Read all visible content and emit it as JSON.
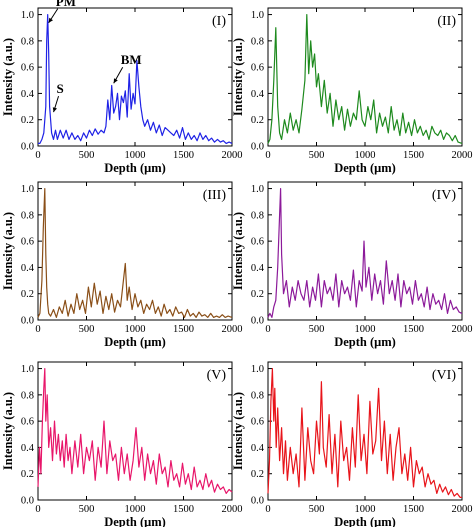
{
  "chart_data": [
    {
      "type": "line",
      "panel_label": "(I)",
      "color": "#1f22e6",
      "xlabel": "Depth (μm)",
      "ylabel": "Intensity (a.u.)",
      "xlim": [
        0,
        2000
      ],
      "ylim": [
        0,
        1.05
      ],
      "xticks": [
        "0",
        "500",
        "1000",
        "1500",
        "2000"
      ],
      "yticks": [
        "0.0",
        "0.2",
        "0.4",
        "0.6",
        "0.8",
        "1.0"
      ],
      "annotations": [
        {
          "text": "PM",
          "x": 100,
          "y": 0.93
        },
        {
          "text": "S",
          "x": 150,
          "y": 0.25
        },
        {
          "text": "BM",
          "x": 770,
          "y": 0.47
        }
      ],
      "x": [
        0,
        20,
        40,
        60,
        80,
        90,
        100,
        110,
        120,
        140,
        160,
        180,
        200,
        230,
        260,
        290,
        320,
        350,
        380,
        410,
        440,
        470,
        500,
        530,
        560,
        590,
        620,
        650,
        680,
        700,
        720,
        740,
        760,
        780,
        800,
        820,
        840,
        860,
        880,
        900,
        920,
        940,
        960,
        980,
        1000,
        1020,
        1040,
        1060,
        1080,
        1100,
        1130,
        1160,
        1190,
        1220,
        1250,
        1280,
        1310,
        1340,
        1370,
        1400,
        1430,
        1460,
        1490,
        1520,
        1550,
        1580,
        1610,
        1640,
        1670,
        1700,
        1730,
        1760,
        1790,
        1820,
        1850,
        1880,
        1910,
        1940,
        1970,
        2000
      ],
      "y": [
        0.02,
        0.02,
        0.05,
        0.1,
        0.3,
        0.8,
        1.0,
        0.7,
        0.3,
        0.1,
        0.05,
        0.12,
        0.05,
        0.12,
        0.06,
        0.12,
        0.05,
        0.1,
        0.05,
        0.08,
        0.04,
        0.1,
        0.06,
        0.12,
        0.08,
        0.13,
        0.09,
        0.12,
        0.1,
        0.15,
        0.35,
        0.2,
        0.46,
        0.25,
        0.3,
        0.4,
        0.2,
        0.38,
        0.33,
        0.42,
        0.22,
        0.55,
        0.28,
        0.4,
        0.32,
        0.65,
        0.45,
        0.3,
        0.2,
        0.15,
        0.2,
        0.12,
        0.18,
        0.1,
        0.16,
        0.08,
        0.14,
        0.12,
        0.1,
        0.08,
        0.12,
        0.06,
        0.14,
        0.05,
        0.1,
        0.05,
        0.08,
        0.04,
        0.1,
        0.05,
        0.08,
        0.04,
        0.06,
        0.03,
        0.05,
        0.03,
        0.04,
        0.02,
        0.03,
        0.02
      ]
    },
    {
      "type": "line",
      "panel_label": "(II)",
      "color": "#1e8a1e",
      "xlabel": "Depth (μm)",
      "ylabel": "Intensity (a.u.)",
      "xlim": [
        0,
        2000
      ],
      "ylim": [
        0,
        1.05
      ],
      "xticks": [
        "0",
        "500",
        "1000",
        "1500",
        "2000"
      ],
      "yticks": [
        "0.0",
        "0.2",
        "0.4",
        "0.6",
        "0.8",
        "1.0"
      ],
      "x": [
        0,
        20,
        40,
        60,
        80,
        100,
        120,
        140,
        170,
        200,
        230,
        260,
        290,
        320,
        350,
        380,
        400,
        420,
        440,
        460,
        480,
        500,
        520,
        550,
        580,
        610,
        640,
        670,
        700,
        730,
        760,
        790,
        820,
        850,
        880,
        910,
        940,
        970,
        1000,
        1030,
        1060,
        1090,
        1120,
        1150,
        1180,
        1210,
        1240,
        1270,
        1300,
        1330,
        1360,
        1390,
        1420,
        1450,
        1480,
        1510,
        1540,
        1570,
        1600,
        1630,
        1660,
        1690,
        1720,
        1750,
        1780,
        1810,
        1840,
        1870,
        1900,
        1930,
        1960,
        2000
      ],
      "y": [
        0.02,
        0.05,
        0.2,
        0.5,
        0.9,
        0.3,
        0.1,
        0.05,
        0.2,
        0.1,
        0.25,
        0.12,
        0.2,
        0.1,
        0.28,
        0.5,
        1.0,
        0.55,
        0.8,
        0.6,
        0.7,
        0.45,
        0.55,
        0.3,
        0.5,
        0.25,
        0.4,
        0.15,
        0.35,
        0.2,
        0.3,
        0.12,
        0.28,
        0.15,
        0.25,
        0.2,
        0.42,
        0.2,
        0.15,
        0.3,
        0.2,
        0.35,
        0.1,
        0.25,
        0.15,
        0.22,
        0.1,
        0.3,
        0.12,
        0.2,
        0.08,
        0.25,
        0.1,
        0.18,
        0.08,
        0.2,
        0.1,
        0.15,
        0.08,
        0.12,
        0.05,
        0.15,
        0.1,
        0.08,
        0.12,
        0.05,
        0.1,
        0.08,
        0.04,
        0.08,
        0.03,
        0.02
      ]
    },
    {
      "type": "line",
      "panel_label": "(III)",
      "color": "#8a4f18",
      "xlabel": "Depth (μm)",
      "ylabel": "Intensity (a.u.)",
      "xlim": [
        0,
        2000
      ],
      "ylim": [
        0,
        1.05
      ],
      "xticks": [
        "0",
        "500",
        "1000",
        "1500",
        "2000"
      ],
      "yticks": [
        "0.0",
        "0.2",
        "0.4",
        "0.6",
        "0.8",
        "1.0"
      ],
      "x": [
        0,
        20,
        40,
        55,
        70,
        80,
        90,
        100,
        110,
        130,
        160,
        190,
        220,
        250,
        280,
        310,
        340,
        370,
        400,
        430,
        460,
        490,
        520,
        550,
        580,
        610,
        640,
        670,
        700,
        730,
        760,
        790,
        820,
        850,
        880,
        900,
        920,
        940,
        970,
        1000,
        1030,
        1060,
        1090,
        1120,
        1150,
        1180,
        1210,
        1240,
        1270,
        1300,
        1330,
        1360,
        1390,
        1420,
        1450,
        1480,
        1510,
        1540,
        1570,
        1600,
        1630,
        1660,
        1690,
        1720,
        1750,
        1780,
        1810,
        1840,
        1870,
        1900,
        1930,
        1960,
        2000
      ],
      "y": [
        0.02,
        0.05,
        0.3,
        0.7,
        1.0,
        0.5,
        0.25,
        0.12,
        0.05,
        0.03,
        0.08,
        0.02,
        0.1,
        0.05,
        0.15,
        0.03,
        0.12,
        0.05,
        0.2,
        0.08,
        0.15,
        0.05,
        0.25,
        0.1,
        0.28,
        0.12,
        0.22,
        0.05,
        0.18,
        0.08,
        0.2,
        0.06,
        0.15,
        0.1,
        0.3,
        0.43,
        0.15,
        0.25,
        0.08,
        0.2,
        0.1,
        0.15,
        0.05,
        0.12,
        0.08,
        0.15,
        0.05,
        0.1,
        0.03,
        0.12,
        0.05,
        0.08,
        0.03,
        0.1,
        0.05,
        0.06,
        0.02,
        0.08,
        0.03,
        0.05,
        0.02,
        0.06,
        0.03,
        0.04,
        0.02,
        0.05,
        0.02,
        0.03,
        0.02,
        0.04,
        0.02,
        0.03,
        0.02
      ]
    },
    {
      "type": "line",
      "panel_label": "(IV)",
      "color": "#8c1a9a",
      "xlabel": "Depth (μm)",
      "ylabel": "Intensity (a.u.)",
      "xlim": [
        0,
        2000
      ],
      "ylim": [
        0,
        1.05
      ],
      "xticks": [
        "0",
        "500",
        "1000",
        "1500",
        "2000"
      ],
      "yticks": [
        "0.0",
        "0.2",
        "0.4",
        "0.6",
        "0.8",
        "1.0"
      ],
      "x": [
        0,
        20,
        40,
        60,
        80,
        100,
        120,
        130,
        140,
        160,
        190,
        220,
        250,
        280,
        310,
        340,
        370,
        400,
        430,
        460,
        490,
        520,
        550,
        580,
        610,
        640,
        670,
        700,
        730,
        760,
        790,
        820,
        850,
        880,
        910,
        940,
        970,
        990,
        1010,
        1040,
        1070,
        1100,
        1130,
        1160,
        1190,
        1220,
        1250,
        1280,
        1310,
        1340,
        1370,
        1400,
        1430,
        1460,
        1490,
        1520,
        1550,
        1580,
        1610,
        1640,
        1670,
        1700,
        1730,
        1760,
        1790,
        1820,
        1850,
        1880,
        1910,
        1940,
        1970,
        2000
      ],
      "y": [
        0.02,
        0.05,
        0.02,
        0.1,
        0.15,
        0.4,
        0.8,
        1.0,
        0.5,
        0.2,
        0.3,
        0.1,
        0.25,
        0.15,
        0.3,
        0.2,
        0.15,
        0.3,
        0.1,
        0.25,
        0.15,
        0.35,
        0.1,
        0.3,
        0.2,
        0.25,
        0.15,
        0.35,
        0.1,
        0.3,
        0.2,
        0.25,
        0.15,
        0.38,
        0.1,
        0.3,
        0.22,
        0.6,
        0.25,
        0.4,
        0.15,
        0.35,
        0.2,
        0.3,
        0.12,
        0.45,
        0.2,
        0.3,
        0.15,
        0.35,
        0.1,
        0.3,
        0.2,
        0.25,
        0.12,
        0.3,
        0.15,
        0.2,
        0.1,
        0.25,
        0.08,
        0.2,
        0.12,
        0.15,
        0.08,
        0.2,
        0.05,
        0.15,
        0.08,
        0.1,
        0.06,
        0.05
      ]
    },
    {
      "type": "line",
      "panel_label": "(V)",
      "color": "#e8166a",
      "xlabel": "Depth (μm)",
      "ylabel": "Intensity (a.u.)",
      "xlim": [
        0,
        2000
      ],
      "ylim": [
        0,
        1.05
      ],
      "xticks": [
        "0",
        "500",
        "1000",
        "1500",
        "2000"
      ],
      "yticks": [
        "0.0",
        "0.2",
        "0.4",
        "0.6",
        "0.8",
        "1.0"
      ],
      "x": [
        0,
        15,
        30,
        45,
        60,
        70,
        80,
        95,
        110,
        130,
        150,
        170,
        190,
        210,
        230,
        250,
        270,
        290,
        310,
        330,
        350,
        380,
        410,
        440,
        470,
        500,
        530,
        560,
        590,
        620,
        650,
        680,
        710,
        740,
        770,
        800,
        830,
        860,
        890,
        920,
        950,
        980,
        1010,
        1040,
        1070,
        1100,
        1130,
        1160,
        1190,
        1220,
        1250,
        1280,
        1310,
        1340,
        1370,
        1400,
        1430,
        1460,
        1490,
        1520,
        1550,
        1580,
        1610,
        1640,
        1670,
        1700,
        1730,
        1760,
        1790,
        1820,
        1850,
        1880,
        1910,
        1940,
        1970,
        2000
      ],
      "y": [
        0.1,
        0.4,
        0.2,
        0.6,
        0.85,
        1.0,
        0.6,
        0.8,
        0.4,
        0.55,
        0.3,
        0.6,
        0.35,
        0.5,
        0.3,
        0.45,
        0.25,
        0.5,
        0.3,
        0.4,
        0.2,
        0.45,
        0.25,
        0.5,
        0.2,
        0.4,
        0.3,
        0.45,
        0.15,
        0.4,
        0.25,
        0.6,
        0.2,
        0.45,
        0.3,
        0.35,
        0.15,
        0.4,
        0.2,
        0.35,
        0.15,
        0.3,
        0.55,
        0.25,
        0.4,
        0.15,
        0.35,
        0.2,
        0.3,
        0.12,
        0.35,
        0.2,
        0.25,
        0.1,
        0.3,
        0.15,
        0.2,
        0.1,
        0.28,
        0.12,
        0.2,
        0.08,
        0.25,
        0.1,
        0.15,
        0.08,
        0.2,
        0.1,
        0.15,
        0.06,
        0.12,
        0.08,
        0.1,
        0.05,
        0.08,
        0.06
      ]
    },
    {
      "type": "line",
      "panel_label": "(VI)",
      "color": "#e8141a",
      "xlabel": "Depth (μm)",
      "ylabel": "Intensity (a.u.)",
      "xlim": [
        0,
        2000
      ],
      "ylim": [
        0,
        1.05
      ],
      "xticks": [
        "0",
        "500",
        "1000",
        "1500",
        "2000"
      ],
      "yticks": [
        "0.0",
        "0.2",
        "0.4",
        "0.6",
        "0.8",
        "1.0"
      ],
      "x": [
        0,
        15,
        30,
        45,
        60,
        70,
        85,
        100,
        120,
        140,
        160,
        180,
        200,
        230,
        260,
        290,
        320,
        350,
        380,
        410,
        440,
        470,
        500,
        530,
        550,
        570,
        600,
        630,
        660,
        690,
        720,
        750,
        780,
        810,
        840,
        870,
        900,
        930,
        960,
        990,
        1020,
        1050,
        1080,
        1110,
        1140,
        1170,
        1200,
        1230,
        1260,
        1290,
        1320,
        1350,
        1380,
        1410,
        1440,
        1470,
        1500,
        1530,
        1560,
        1590,
        1620,
        1650,
        1680,
        1710,
        1740,
        1770,
        1800,
        1830,
        1860,
        1890,
        1920,
        1950,
        1980,
        2000
      ],
      "y": [
        0.05,
        0.3,
        0.75,
        1.0,
        0.6,
        0.85,
        0.4,
        0.7,
        0.3,
        0.55,
        0.2,
        0.45,
        0.15,
        0.4,
        0.2,
        0.35,
        0.1,
        0.7,
        0.15,
        0.55,
        0.3,
        0.2,
        0.6,
        0.35,
        0.9,
        0.4,
        0.25,
        0.65,
        0.2,
        0.5,
        0.1,
        0.6,
        0.3,
        0.4,
        0.15,
        0.55,
        0.25,
        0.8,
        0.3,
        0.5,
        0.2,
        0.75,
        0.35,
        0.45,
        0.85,
        0.3,
        0.6,
        0.2,
        0.5,
        0.15,
        0.4,
        0.55,
        0.2,
        0.35,
        0.15,
        0.4,
        0.1,
        0.3,
        0.2,
        0.25,
        0.1,
        0.2,
        0.12,
        0.15,
        0.05,
        0.12,
        0.06,
        0.1,
        0.04,
        0.08,
        0.03,
        0.05,
        0.02,
        0.02
      ]
    }
  ]
}
